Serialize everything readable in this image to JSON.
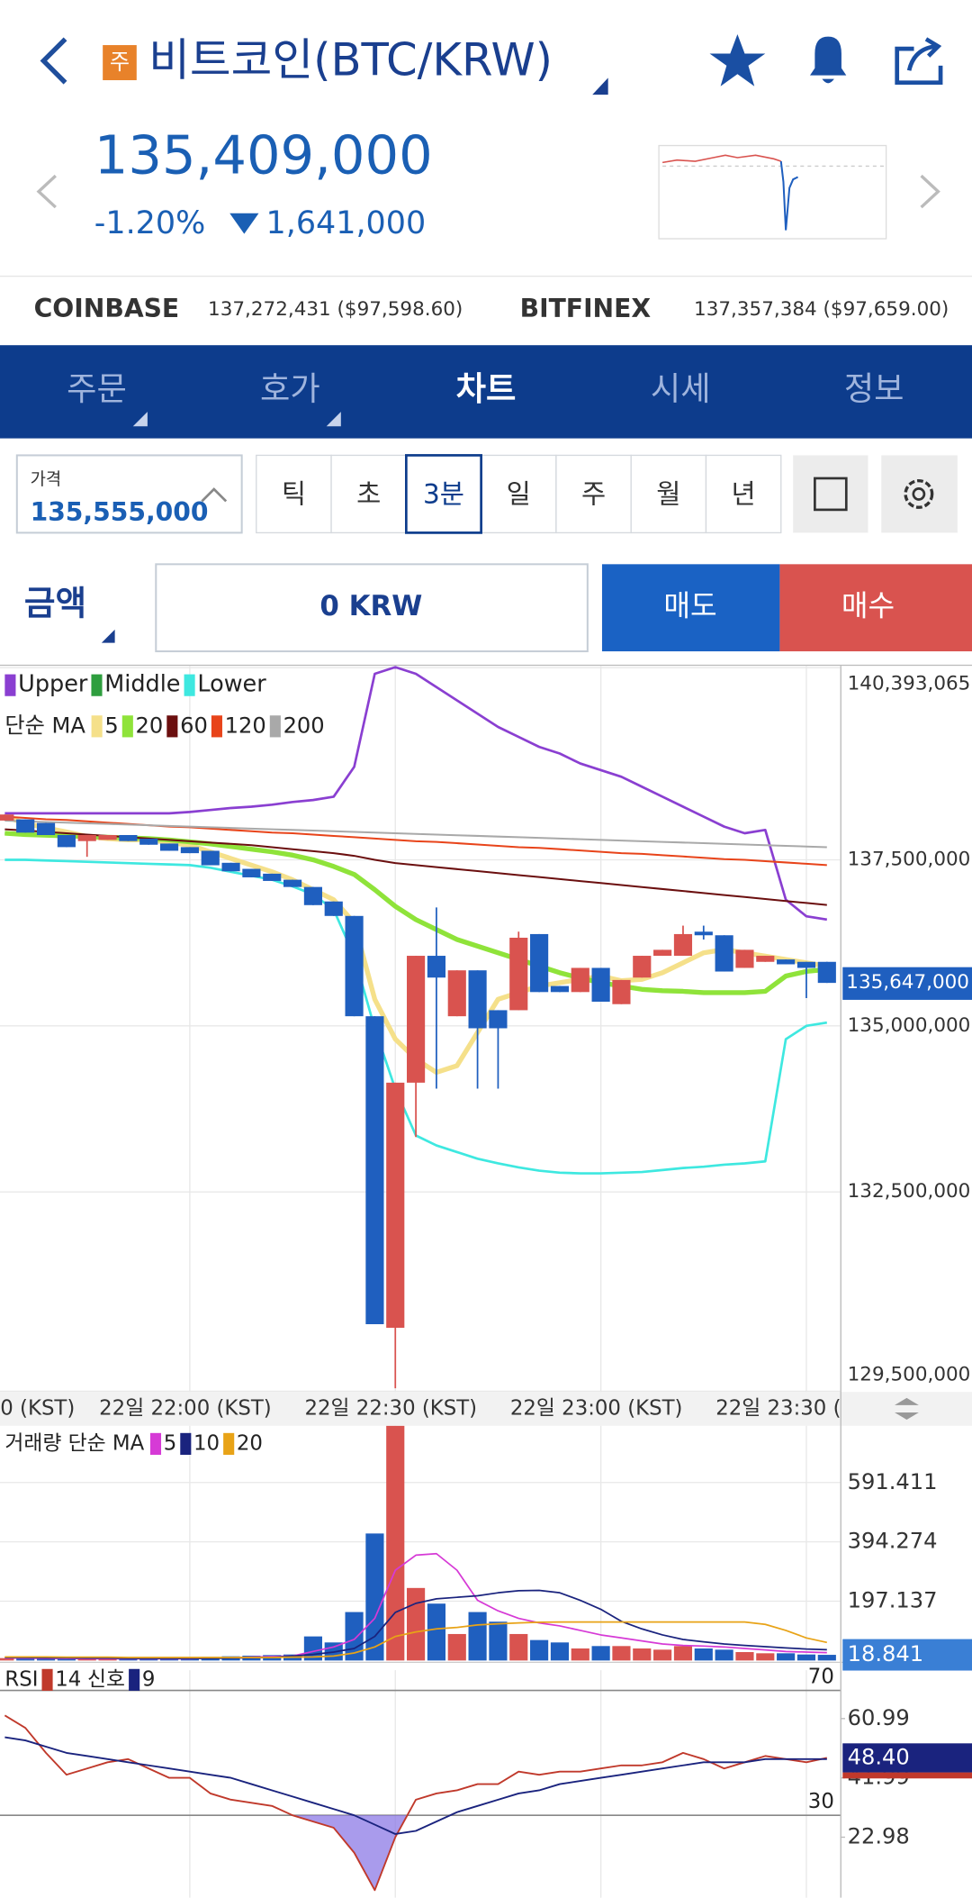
{
  "header": {
    "badge": "주",
    "title": "비트코인(BTC/KRW)"
  },
  "quote": {
    "price": "135,409,000",
    "change_pct": "-1.20%",
    "change_amount": "1,641,000"
  },
  "exchanges": [
    {
      "name": "COINBASE",
      "price": "137,272,431 ($97,598.60)"
    },
    {
      "name": "BITFINEX",
      "price": "137,357,384 ($97,659.00)"
    }
  ],
  "tabs": {
    "items": [
      "주문",
      "호가",
      "차트",
      "시세",
      "정보"
    ],
    "active": "차트"
  },
  "price_box": {
    "label": "가격",
    "value": "135,555,000"
  },
  "periods": {
    "items": [
      "틱",
      "초",
      "3분",
      "일",
      "주",
      "월",
      "년"
    ],
    "selected": "3분"
  },
  "order": {
    "label": "금액",
    "amount": "0 KRW",
    "sell": "매도",
    "buy": "매수"
  },
  "chart_data": [
    {
      "type": "candlestick",
      "ylim": [
        129490000,
        140420000
      ],
      "yticks": [
        {
          "value": 140393065,
          "label": "140,393,065"
        },
        {
          "value": 137500000,
          "label": "137,500,000"
        },
        {
          "value": 135000000,
          "label": "135,000,000"
        },
        {
          "value": 132500000,
          "label": "132,500,000"
        },
        {
          "value": 129500000,
          "label": "129,500,000"
        }
      ],
      "current": {
        "value": 135647000,
        "label": "135,647,000"
      },
      "x_label_clipped": "0 (KST)",
      "categories": [
        null,
        null,
        null,
        null,
        null,
        null,
        null,
        null,
        null,
        "22일 22:00 (KST)",
        null,
        null,
        null,
        null,
        null,
        null,
        null,
        null,
        null,
        "22일 22:30 (KST)",
        null,
        null,
        null,
        null,
        null,
        null,
        null,
        null,
        null,
        "22일 23:00 (KST)",
        null,
        null,
        null,
        null,
        null,
        null,
        null,
        null,
        null,
        "22일 23:30 (",
        null
      ],
      "colors": {
        "up": "#d9534f",
        "down": "#1f5fbf"
      },
      "open": [
        138091000,
        138109000,
        138055000,
        137873000,
        137782000,
        137800000,
        137873000,
        137818000,
        137745000,
        137691000,
        137636000,
        137455000,
        137364000,
        137291000,
        137200000,
        137091000,
        136873000,
        136655000,
        135145000,
        130455000,
        134145000,
        136055000,
        135145000,
        135836000,
        135236000,
        135236000,
        136382000,
        135600000,
        135509000,
        135873000,
        135327000,
        135727000,
        136055000,
        136055000,
        136418000,
        136364000,
        135873000,
        135964000,
        136000000,
        135964000,
        135964000
      ],
      "high": [
        138182000,
        138109000,
        138055000,
        137873000,
        137873000,
        137873000,
        137873000,
        137818000,
        137745000,
        137691000,
        137636000,
        137455000,
        137364000,
        137291000,
        137200000,
        137091000,
        136873000,
        136655000,
        135145000,
        134145000,
        136055000,
        136782000,
        135836000,
        135836000,
        135236000,
        136418000,
        136382000,
        135600000,
        135873000,
        135873000,
        135691000,
        136055000,
        136145000,
        136509000,
        136509000,
        136364000,
        136145000,
        136055000,
        136000000,
        135964000,
        135964000
      ],
      "low": [
        138091000,
        137909000,
        137873000,
        137691000,
        137545000,
        137800000,
        137782000,
        137727000,
        137636000,
        137600000,
        137418000,
        137327000,
        137236000,
        137182000,
        137091000,
        136818000,
        136655000,
        135145000,
        130509000,
        129545000,
        133327000,
        134055000,
        135145000,
        134055000,
        134055000,
        135236000,
        135509000,
        135509000,
        135509000,
        135364000,
        135327000,
        135727000,
        136055000,
        136055000,
        136300000,
        135818000,
        135873000,
        135964000,
        135927000,
        135418000,
        135647000
      ],
      "close": [
        138182000,
        137909000,
        137873000,
        137691000,
        137873000,
        137873000,
        137782000,
        137727000,
        137636000,
        137600000,
        137418000,
        137327000,
        137236000,
        137182000,
        137091000,
        136818000,
        136655000,
        135145000,
        130509000,
        134145000,
        136055000,
        135727000,
        135836000,
        134964000,
        134964000,
        136327000,
        135509000,
        135509000,
        135873000,
        135364000,
        135691000,
        136055000,
        136145000,
        136382000,
        136364000,
        135818000,
        136145000,
        136055000,
        135927000,
        135873000,
        135647000
      ],
      "bollinger": [
        {
          "name": "Upper",
          "color": "#8a3fd1",
          "values": [
            138200000,
            138200000,
            138200000,
            138200000,
            138200000,
            138200000,
            138200000,
            138200000,
            138200000,
            138220000,
            138250000,
            138280000,
            138300000,
            138330000,
            138370000,
            138400000,
            138450000,
            138900000,
            140300000,
            140400000,
            140300000,
            140100000,
            139900000,
            139700000,
            139500000,
            139350000,
            139200000,
            139100000,
            138950000,
            138850000,
            138750000,
            138600000,
            138450000,
            138300000,
            138150000,
            138000000,
            137900000,
            137950000,
            136900000,
            136650000,
            136600000
          ]
        },
        {
          "name": "Middle",
          "color": "#2e9e3e",
          "values": [
            137900000,
            137880000,
            137870000,
            137860000,
            137850000,
            137840000,
            137830000,
            137820000,
            137800000,
            137770000,
            137740000,
            137700000,
            137660000,
            137620000,
            137570000,
            137500000,
            137400000,
            137280000,
            137050000,
            136800000,
            136600000,
            136450000,
            136300000,
            136200000,
            136100000,
            136000000,
            135900000,
            135800000,
            135720000,
            135650000,
            135600000,
            135550000,
            135530000,
            135520000,
            135500000,
            135500000,
            135500000,
            135520000,
            135750000,
            135820000,
            135850000
          ]
        },
        {
          "name": "Lower",
          "color": "#3ee8e0",
          "values": [
            137500000,
            137500000,
            137490000,
            137480000,
            137470000,
            137460000,
            137450000,
            137440000,
            137430000,
            137420000,
            137380000,
            137320000,
            137260000,
            137200000,
            137100000,
            136980000,
            136750000,
            136050000,
            134960000,
            134050000,
            133350000,
            133200000,
            133100000,
            133000000,
            132930000,
            132870000,
            132820000,
            132790000,
            132780000,
            132780000,
            132790000,
            132800000,
            132830000,
            132860000,
            132880000,
            132910000,
            132930000,
            132960000,
            134800000,
            135000000,
            135050000
          ]
        }
      ],
      "ma_label": "단순 MA",
      "ma": [
        {
          "name": "5",
          "color": "#f5e08a",
          "values": [
            138150000,
            138050000,
            137980000,
            137920000,
            137850000,
            137820000,
            137800000,
            137800000,
            137760000,
            137720000,
            137620000,
            137520000,
            137420000,
            137320000,
            137200000,
            137050000,
            136900000,
            136550000,
            135400000,
            134800000,
            134500000,
            134300000,
            134400000,
            134900000,
            135400000,
            135500000,
            135600000,
            135650000,
            135700000,
            135750000,
            135680000,
            135700000,
            135800000,
            135950000,
            136100000,
            136150000,
            136100000,
            136050000,
            136000000,
            135950000,
            135900000
          ]
        },
        {
          "name": "20",
          "color": "#8fe33a",
          "values": [
            137900000,
            137880000,
            137870000,
            137860000,
            137850000,
            137840000,
            137830000,
            137820000,
            137800000,
            137770000,
            137740000,
            137700000,
            137660000,
            137620000,
            137570000,
            137500000,
            137400000,
            137280000,
            137050000,
            136800000,
            136600000,
            136450000,
            136300000,
            136200000,
            136100000,
            136000000,
            135900000,
            135800000,
            135720000,
            135650000,
            135600000,
            135550000,
            135530000,
            135520000,
            135500000,
            135500000,
            135500000,
            135520000,
            135750000,
            135820000,
            135850000
          ]
        },
        {
          "name": "60",
          "color": "#6b0f0f",
          "values": [
            137960000,
            137940000,
            137920000,
            137900000,
            137880000,
            137860000,
            137840000,
            137820000,
            137800000,
            137780000,
            137760000,
            137740000,
            137720000,
            137690000,
            137660000,
            137630000,
            137600000,
            137560000,
            137500000,
            137450000,
            137420000,
            137390000,
            137360000,
            137330000,
            137300000,
            137270000,
            137240000,
            137210000,
            137180000,
            137150000,
            137120000,
            137090000,
            137060000,
            137030000,
            137000000,
            136970000,
            136940000,
            136910000,
            136880000,
            136850000,
            136820000
          ]
        },
        {
          "name": "120",
          "color": "#e8441a",
          "values": [
            138150000,
            138130000,
            138110000,
            138100000,
            138080000,
            138060000,
            138040000,
            138020000,
            138000000,
            137990000,
            137970000,
            137950000,
            137930000,
            137910000,
            137900000,
            137880000,
            137860000,
            137840000,
            137820000,
            137800000,
            137780000,
            137770000,
            137750000,
            137730000,
            137710000,
            137690000,
            137680000,
            137660000,
            137640000,
            137620000,
            137600000,
            137590000,
            137570000,
            137550000,
            137530000,
            137510000,
            137500000,
            137480000,
            137460000,
            137440000,
            137420000
          ]
        },
        {
          "name": "200",
          "color": "#a9a9a9",
          "values": [
            138090000,
            138080000,
            138070000,
            138060000,
            138050000,
            138040000,
            138030000,
            138020000,
            138010000,
            138000000,
            137990000,
            137980000,
            137970000,
            137960000,
            137950000,
            137940000,
            137930000,
            137920000,
            137910000,
            137900000,
            137890000,
            137880000,
            137870000,
            137860000,
            137850000,
            137840000,
            137830000,
            137820000,
            137810000,
            137800000,
            137790000,
            137780000,
            137770000,
            137760000,
            137750000,
            137740000,
            137730000,
            137720000,
            137710000,
            137700000,
            137690000
          ]
        }
      ]
    },
    {
      "type": "bar",
      "ylim": [
        0,
        780
      ],
      "yticks": [
        591.411,
        394.274,
        197.137
      ],
      "ma_label": "거래량 단순 MA",
      "values": [
        8,
        6,
        7,
        5,
        6,
        5,
        6,
        7,
        6,
        8,
        12,
        14,
        16,
        18,
        20,
        80,
        60,
        161,
        422,
        780,
        241,
        189,
        88,
        161,
        129,
        88,
        68,
        60,
        40,
        48,
        48,
        40,
        36,
        48,
        40,
        36,
        28,
        24,
        24,
        20,
        18.841
      ],
      "series": [
        {
          "name": "5",
          "color": "#d63ad6",
          "values": [
            8,
            8,
            7,
            7,
            6,
            6,
            6,
            6,
            6,
            6,
            8,
            9,
            11,
            13,
            15,
            30,
            45,
            70,
            140,
            300,
            350,
            355,
            300,
            200,
            165,
            140,
            125,
            115,
            100,
            85,
            75,
            65,
            55,
            50,
            48,
            45,
            40,
            35,
            30,
            28,
            26
          ]
        },
        {
          "name": "10",
          "color": "#1a237e",
          "values": [
            10,
            10,
            9,
            9,
            8,
            8,
            7,
            7,
            7,
            7,
            7,
            8,
            9,
            10,
            15,
            20,
            28,
            40,
            80,
            160,
            190,
            205,
            210,
            215,
            225,
            232,
            233,
            225,
            200,
            170,
            130,
            105,
            85,
            70,
            62,
            55,
            50,
            46,
            42,
            38,
            36
          ]
        },
        {
          "name": "20",
          "color": "#e8a317",
          "values": [
            12,
            12,
            12,
            11,
            11,
            11,
            10,
            10,
            10,
            10,
            10,
            10,
            10,
            10,
            11,
            12,
            15,
            25,
            45,
            80,
            95,
            105,
            110,
            118,
            122,
            125,
            127,
            128,
            128,
            128,
            128,
            128,
            128,
            128,
            128,
            128,
            128,
            120,
            100,
            75,
            60
          ]
        }
      ]
    },
    {
      "type": "line",
      "title": "RSI",
      "signal_label": "신호",
      "ylim": [
        3.6,
        76.5
      ],
      "yticks": [
        60.99,
        41.99,
        22.98
      ],
      "levels": [
        70,
        30
      ],
      "current": {
        "value": 48.4,
        "label": "48.40"
      },
      "series": [
        {
          "name": "14",
          "color": "#c0392b",
          "values": [
            62,
            58,
            50,
            43,
            45,
            47,
            48,
            45,
            42,
            42,
            37,
            35,
            34,
            33,
            30,
            28,
            26,
            18,
            6,
            23,
            35,
            37,
            38,
            40,
            40,
            44,
            43,
            44,
            44,
            45,
            46,
            46,
            47,
            50,
            48,
            45,
            47,
            49,
            48,
            47,
            48.4
          ]
        },
        {
          "name": "9",
          "color": "#1a237e",
          "values": [
            55,
            54,
            52,
            50,
            49,
            48,
            47,
            46,
            45,
            44,
            43,
            42,
            40,
            38,
            36,
            34,
            32,
            30,
            27,
            24,
            25,
            28,
            31,
            33,
            35,
            37,
            38,
            40,
            41,
            42,
            43,
            44,
            45,
            46,
            47,
            47,
            47,
            48,
            48,
            48,
            48
          ]
        }
      ]
    }
  ]
}
